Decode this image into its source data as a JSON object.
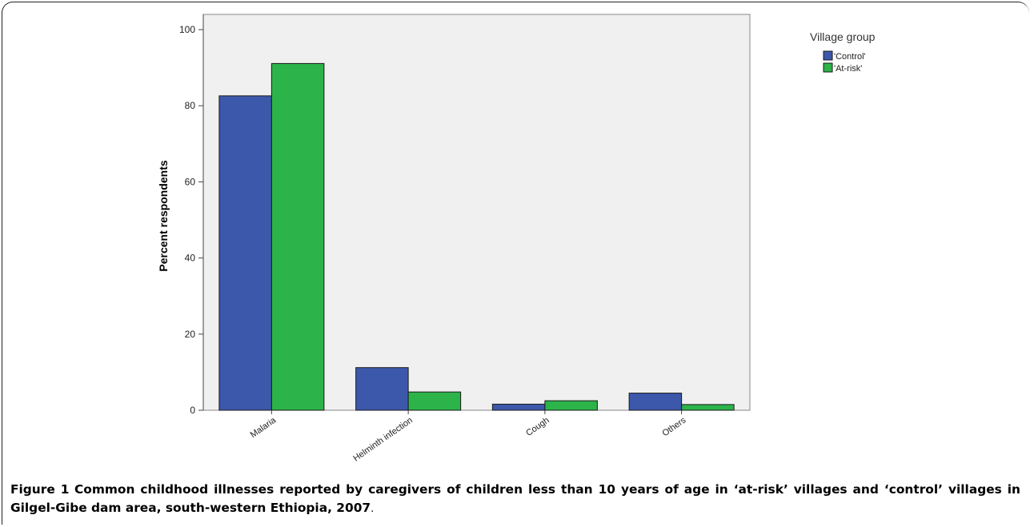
{
  "chart_data": {
    "type": "bar",
    "categories": [
      "Malaria",
      "Helminth infection",
      "Cough",
      "Others"
    ],
    "series": [
      {
        "name": "'Control'",
        "values": [
          82.6,
          11.2,
          1.6,
          4.5
        ],
        "color": "#3c58ab"
      },
      {
        "name": "'At-risk'",
        "values": [
          91.1,
          4.8,
          2.5,
          1.5
        ],
        "color": "#2cb34a"
      }
    ],
    "ylabel": "Percent respondents",
    "xlabel": "",
    "ylim": [
      0,
      104
    ],
    "yticks": [
      0,
      20,
      40,
      60,
      80,
      100
    ],
    "legend_title": "Village group",
    "legend_position": "top-right outside plot",
    "grid": false,
    "plot_background": "#f0f0f0"
  },
  "caption": {
    "label": "Figure 1",
    "text": "Common childhood illnesses reported by caregivers of children less than 10 years of age in ‘at-risk’ villages and ‘control’ villages in Gilgel-Gibe dam area, south-western Ethiopia, 2007",
    "end": "."
  }
}
